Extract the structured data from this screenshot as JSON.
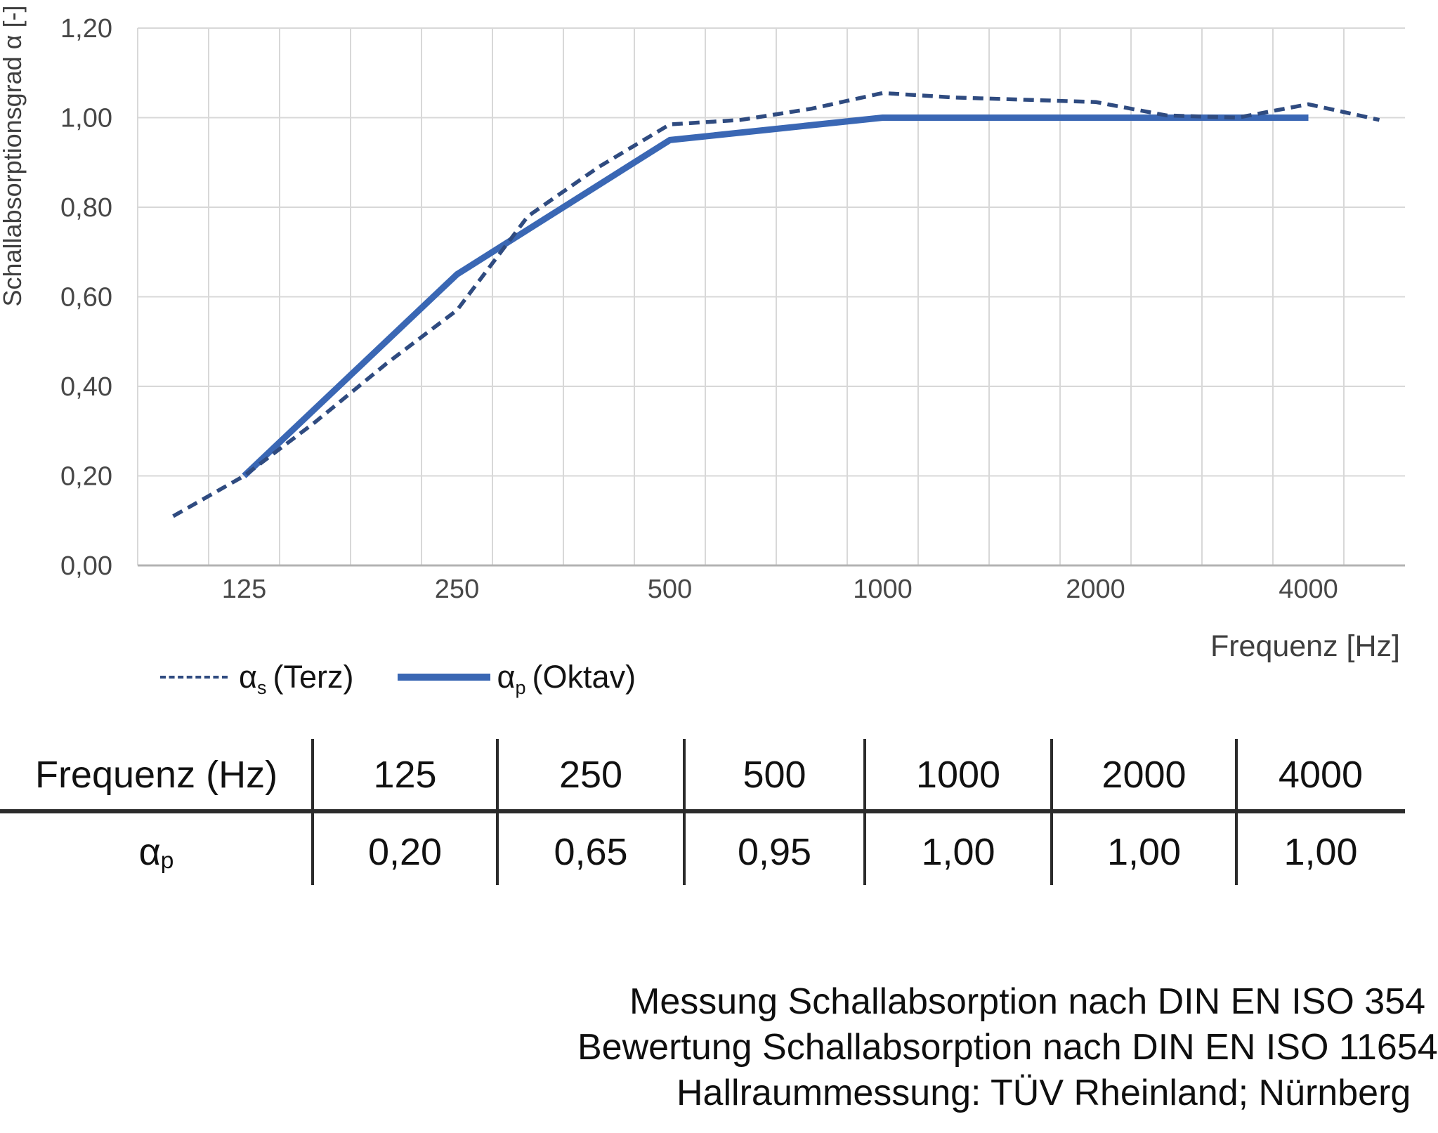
{
  "chart": {
    "y_axis": {
      "title": "Schallabsorptionsgrad α [-]",
      "labels": [
        "1,20",
        "1,00",
        "0,80",
        "0,60",
        "0,40",
        "0,20",
        "0,00"
      ],
      "min": 0,
      "max": 1.2,
      "step": 0.2
    },
    "x_axis": {
      "title": "Frequenz [Hz]",
      "labels": [
        "125",
        "250",
        "500",
        "1000",
        "2000",
        "4000"
      ]
    },
    "legend": {
      "terz": {
        "alpha": "α",
        "sub": "s",
        "rest": "(Terz)"
      },
      "oktav": {
        "alpha": "α",
        "sub": "p",
        "rest": "(Oktav)"
      }
    }
  },
  "chart_data": {
    "type": "line",
    "title": "",
    "xlabel": "Frequenz [Hz]",
    "ylabel": "Schallabsorptionsgrad α [-]",
    "x_scale": "logarithmic, third-octave band categories",
    "categories": [
      100,
      125,
      160,
      200,
      250,
      315,
      400,
      500,
      630,
      800,
      1000,
      1250,
      1600,
      2000,
      2500,
      3150,
      4000,
      5000
    ],
    "series": [
      {
        "name": "αs (Terz)",
        "style": "dashed",
        "color": "#2F4B80",
        "x": [
          100,
          125,
          160,
          200,
          250,
          315,
          400,
          500,
          630,
          800,
          1000,
          1250,
          1600,
          2000,
          2500,
          3150,
          4000,
          5000
        ],
        "values": [
          0.11,
          0.2,
          0.32,
          0.45,
          0.57,
          0.78,
          0.89,
          0.985,
          0.995,
          1.02,
          1.055,
          1.045,
          1.04,
          1.035,
          1.005,
          1.0,
          1.03,
          0.995
        ]
      },
      {
        "name": "αp (Oktav)",
        "style": "solid",
        "color": "#3A67B4",
        "x": [
          125,
          250,
          500,
          1000,
          2000,
          4000
        ],
        "values": [
          0.2,
          0.65,
          0.95,
          1.0,
          1.0,
          1.0
        ]
      }
    ],
    "ylim": [
      0,
      1.2
    ],
    "grid": true,
    "legend_position": "below-left"
  },
  "table": {
    "header_row": [
      "Frequenz (Hz)",
      "125",
      "250",
      "500",
      "1000",
      "2000",
      "4000"
    ],
    "row_label": {
      "base": "α",
      "sub": "p"
    },
    "values": [
      "0,20",
      "0,65",
      "0,95",
      "1,00",
      "1,00",
      "1,00"
    ]
  },
  "footer": {
    "lines": [
      "Messung Schallabsorption nach DIN EN ISO 354",
      "Bewertung Schallabsorption nach DIN EN ISO 11654",
      "Hallraummessung: TÜV Rheinland; Nürnberg"
    ]
  },
  "colors": {
    "series_solid": "#3A67B4",
    "series_dashed": "#2F4B80",
    "gridline": "#D8D8D8",
    "axis_line": "#B3B3B3",
    "tick_text": "#474747",
    "axis_title_text": "#3F3F3F",
    "table_line": "#2B2B2B",
    "text": "#0F0F0F",
    "background": "#FFFFFF"
  }
}
